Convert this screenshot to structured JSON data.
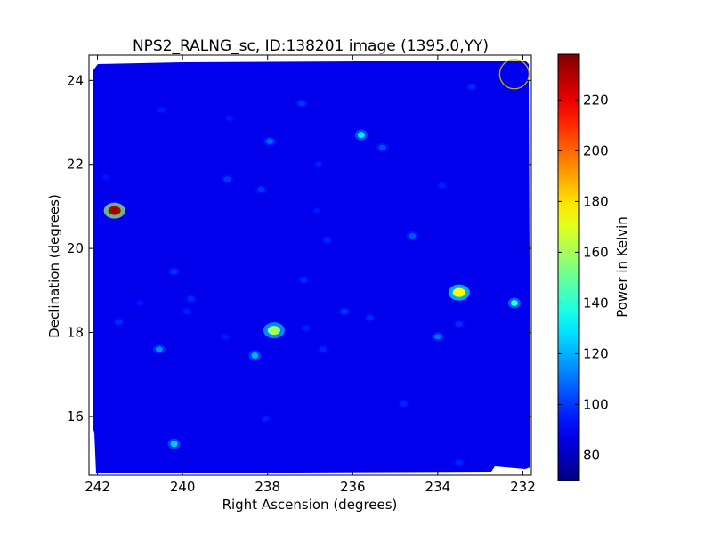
{
  "chart_data": {
    "type": "heatmap",
    "title": "NPS2_RALNG_sc, ID:138201 image (1395.0,YY)",
    "xlabel": "Right Ascension (degrees)",
    "ylabel": "Declination (degrees)",
    "xlim": [
      242.2,
      231.8
    ],
    "ylim": [
      14.6,
      24.6
    ],
    "x_ticks": [
      242,
      240,
      238,
      236,
      234,
      232
    ],
    "y_ticks": [
      16,
      18,
      20,
      22,
      24
    ],
    "colorbar": {
      "label": "Power in Kelvin",
      "range": [
        70,
        238
      ],
      "ticks": [
        80,
        100,
        120,
        140,
        160,
        180,
        200,
        220
      ],
      "colormap": "jet"
    },
    "background_level": 88,
    "sources": [
      {
        "ra": 241.6,
        "dec": 20.9,
        "value": 230
      },
      {
        "ra": 233.5,
        "dec": 18.95,
        "value": 175
      },
      {
        "ra": 237.85,
        "dec": 18.05,
        "value": 160
      },
      {
        "ra": 232.2,
        "dec": 18.7,
        "value": 140
      },
      {
        "ra": 235.8,
        "dec": 22.7,
        "value": 130
      },
      {
        "ra": 240.2,
        "dec": 15.35,
        "value": 125
      },
      {
        "ra": 238.3,
        "dec": 17.45,
        "value": 120
      },
      {
        "ra": 240.55,
        "dec": 17.6,
        "value": 115
      },
      {
        "ra": 234.0,
        "dec": 17.9,
        "value": 110
      },
      {
        "ra": 237.95,
        "dec": 22.55,
        "value": 108
      },
      {
        "ra": 234.6,
        "dec": 20.3,
        "value": 105
      },
      {
        "ra": 235.3,
        "dec": 22.4,
        "value": 104
      },
      {
        "ra": 238.15,
        "dec": 21.4,
        "value": 100
      },
      {
        "ra": 238.95,
        "dec": 21.65,
        "value": 100
      },
      {
        "ra": 237.2,
        "dec": 23.45,
        "value": 100
      },
      {
        "ra": 240.2,
        "dec": 19.45,
        "value": 100
      },
      {
        "ra": 239.8,
        "dec": 18.8,
        "value": 98
      },
      {
        "ra": 239.9,
        "dec": 18.5,
        "value": 96
      },
      {
        "ra": 237.15,
        "dec": 19.25,
        "value": 98
      },
      {
        "ra": 236.2,
        "dec": 18.5,
        "value": 100
      },
      {
        "ra": 235.6,
        "dec": 18.35,
        "value": 98
      },
      {
        "ra": 233.5,
        "dec": 18.2,
        "value": 98
      },
      {
        "ra": 233.2,
        "dec": 23.85,
        "value": 98
      },
      {
        "ra": 241.5,
        "dec": 18.25,
        "value": 98
      },
      {
        "ra": 236.6,
        "dec": 20.2,
        "value": 97
      },
      {
        "ra": 236.7,
        "dec": 17.6,
        "value": 97
      },
      {
        "ra": 237.1,
        "dec": 18.1,
        "value": 96
      },
      {
        "ra": 238.05,
        "dec": 15.95,
        "value": 96
      },
      {
        "ra": 234.8,
        "dec": 16.3,
        "value": 97
      },
      {
        "ra": 233.5,
        "dec": 14.9,
        "value": 97
      },
      {
        "ra": 236.8,
        "dec": 22.0,
        "value": 96
      },
      {
        "ra": 233.9,
        "dec": 21.5,
        "value": 96
      },
      {
        "ra": 238.9,
        "dec": 23.1,
        "value": 95
      },
      {
        "ra": 240.5,
        "dec": 23.3,
        "value": 95
      },
      {
        "ra": 239.0,
        "dec": 17.9,
        "value": 95
      },
      {
        "ra": 241.8,
        "dec": 21.7,
        "value": 94
      },
      {
        "ra": 236.85,
        "dec": 20.9,
        "value": 94
      },
      {
        "ra": 241.0,
        "dec": 18.7,
        "value": 94
      }
    ],
    "beam_marker": {
      "ra": 232.2,
      "dec": 24.15,
      "radius_deg": 0.35,
      "color": "#c8b400"
    }
  }
}
